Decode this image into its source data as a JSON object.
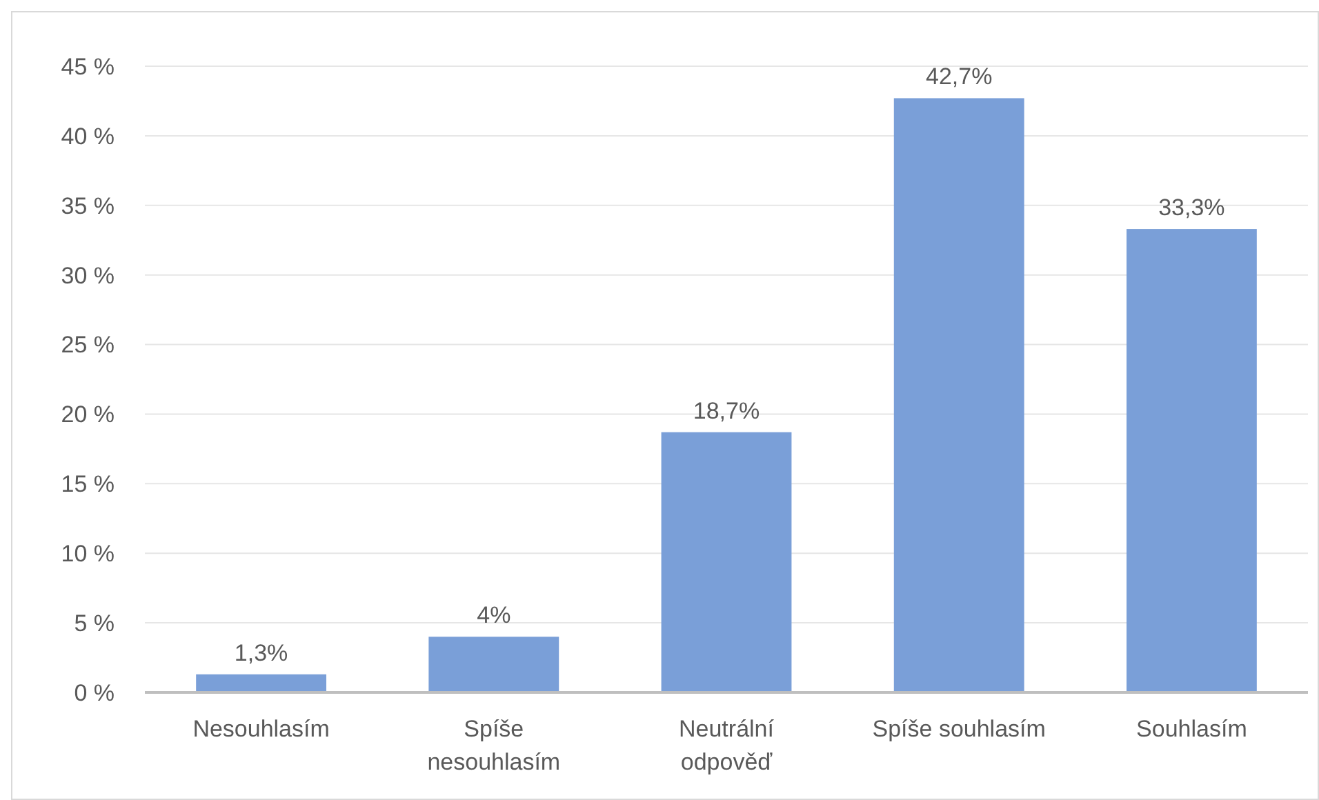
{
  "chart_data": {
    "type": "bar",
    "categories": [
      "Nesouhlasím",
      "Spíše nesouhlasím",
      "Neutrální odpověď",
      "Spíše souhlasím",
      "Souhlasím"
    ],
    "values": [
      1.3,
      4,
      18.7,
      42.7,
      33.3
    ],
    "value_labels": [
      "1,3%",
      "4%",
      "18,7%",
      "42,7%",
      "33,3%"
    ],
    "color": "#7a9fd8",
    "ylim": [
      0,
      45
    ],
    "yticks": [
      {
        "value": 0,
        "label": "0 %"
      },
      {
        "value": 5,
        "label": "5 %"
      },
      {
        "value": 10,
        "label": "10 %"
      },
      {
        "value": 15,
        "label": "15 %"
      },
      {
        "value": 20,
        "label": "20 %"
      },
      {
        "value": 25,
        "label": "25 %"
      },
      {
        "value": 30,
        "label": "30 %"
      },
      {
        "value": 35,
        "label": "35 %"
      },
      {
        "value": 40,
        "label": "40 %"
      },
      {
        "value": 45,
        "label": "45 %"
      }
    ],
    "grid": "y"
  }
}
